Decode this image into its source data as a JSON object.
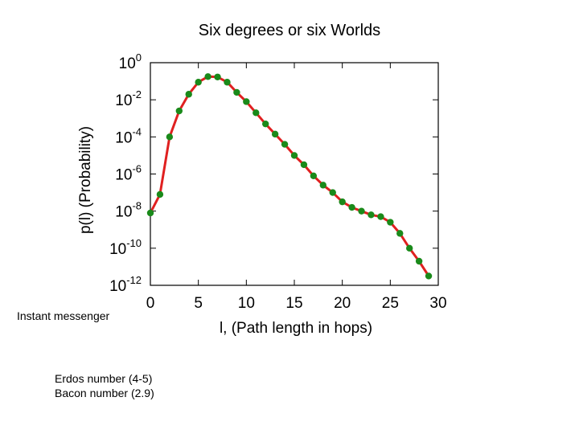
{
  "slide": {
    "title": "Six degrees or six Worlds",
    "note_messenger": "Instant messenger",
    "note_erdos": "Erdos number (4-5)",
    "note_bacon": "Bacon number (2.9)"
  },
  "chart_data": {
    "type": "line",
    "title": "",
    "xlabel": "l, (Path length in hops)",
    "ylabel": "p(l) (Probability)",
    "xlim": [
      0,
      30
    ],
    "ylim": [
      -12,
      0
    ],
    "yscale": "log10",
    "grid": false,
    "x_ticks": [
      0,
      5,
      10,
      15,
      20,
      25,
      30
    ],
    "x_tick_labels": [
      "0",
      "5",
      "10",
      "15",
      "20",
      "25",
      "30"
    ],
    "y_ticks": [
      0,
      -2,
      -4,
      -6,
      -8,
      -10,
      -12
    ],
    "y_tick_labels": [
      {
        "base": "10",
        "exp": "0"
      },
      {
        "base": "10",
        "exp": "-2"
      },
      {
        "base": "10",
        "exp": "-4"
      },
      {
        "base": "10",
        "exp": "-6"
      },
      {
        "base": "10",
        "exp": "-8"
      },
      {
        "base": "10",
        "exp": "-10"
      },
      {
        "base": "10",
        "exp": "-12"
      }
    ],
    "line_color": "#e02020",
    "marker_color": "#1a8a1a",
    "series": [
      {
        "x": [
          0,
          1,
          2,
          3,
          4,
          5,
          6,
          7,
          8,
          9,
          10,
          11,
          12,
          13,
          14,
          15,
          16,
          17,
          18,
          19,
          20,
          21,
          22,
          23,
          24,
          25,
          26,
          27,
          28,
          29
        ],
        "log10_y": [
          -8.1,
          -7.1,
          -4.0,
          -2.6,
          -1.7,
          -1.05,
          -0.75,
          -0.77,
          -1.05,
          -1.6,
          -2.1,
          -2.7,
          -3.3,
          -3.85,
          -4.4,
          -5.0,
          -5.5,
          -6.1,
          -6.6,
          -7.0,
          -7.5,
          -7.8,
          -8.0,
          -8.2,
          -8.3,
          -8.6,
          -9.2,
          -10.0,
          -10.7,
          -11.5
        ]
      }
    ]
  }
}
